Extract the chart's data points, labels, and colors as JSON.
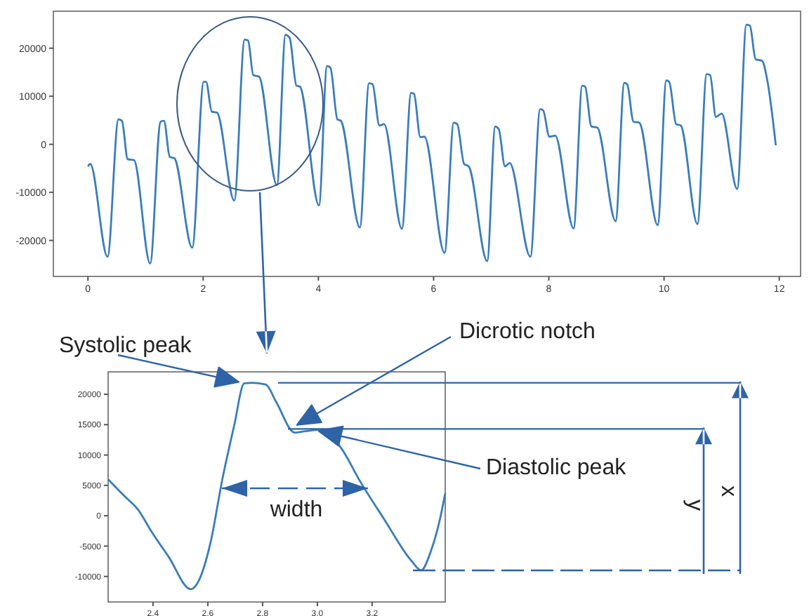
{
  "chart_data": [
    {
      "type": "line",
      "xlim": [
        -0.6,
        12.37
      ],
      "ylim": [
        -27500,
        27700
      ],
      "xticks": [
        0,
        2,
        4,
        6,
        8,
        10,
        12
      ],
      "yticks": [
        -20000,
        -10000,
        0,
        10000,
        20000
      ],
      "grid": false,
      "marker": "none",
      "line_style": "solid",
      "series": [
        {
          "color": "#3a7dbb",
          "x": [
            0,
            0.04,
            0.34,
            0.53,
            0.59,
            0.69,
            0.8,
            1.08,
            1.26,
            1.32,
            1.42,
            1.5,
            1.81,
            2.01,
            2.05,
            2.15,
            2.24,
            2.54,
            2.72,
            2.78,
            2.87,
            2.97,
            3.28,
            3.43,
            3.5,
            3.62,
            3.68,
            4.01,
            4.15,
            4.21,
            4.33,
            4.39,
            4.72,
            4.88,
            4.94,
            5.06,
            5.14,
            5.45,
            5.61,
            5.66,
            5.77,
            5.84,
            6.19,
            6.35,
            6.41,
            6.53,
            6.61,
            6.93,
            7.07,
            7.13,
            7.24,
            7.32,
            7.68,
            7.85,
            7.9,
            8.01,
            8.11,
            8.43,
            8.58,
            8.63,
            8.74,
            8.84,
            9.16,
            9.31,
            9.36,
            9.47,
            9.57,
            9.89,
            10.04,
            10.09,
            10.21,
            10.29,
            10.58,
            10.74,
            10.8,
            10.9,
            11.0,
            11.27,
            11.43,
            11.49,
            11.59,
            11.7,
            11.79,
            11.94
          ],
          "values": [
            -4600,
            -4100,
            -23400,
            5200,
            4900,
            -3100,
            -3300,
            -24800,
            4700,
            4900,
            -2600,
            -2900,
            -21500,
            13000,
            13000,
            6800,
            6600,
            -11700,
            21800,
            21600,
            14400,
            14100,
            -8500,
            22800,
            22200,
            12200,
            12000,
            -12700,
            16300,
            15900,
            5200,
            4900,
            -17300,
            12700,
            12500,
            3900,
            4200,
            -17600,
            10700,
            10500,
            1500,
            1600,
            -22600,
            4500,
            4200,
            -4100,
            -4600,
            -24300,
            3700,
            3200,
            -4600,
            -3900,
            -23400,
            7300,
            7100,
            1600,
            1800,
            -17500,
            12200,
            12000,
            3700,
            3500,
            -16000,
            12800,
            12500,
            4700,
            4500,
            -16800,
            13300,
            13000,
            4200,
            3900,
            -16600,
            14600,
            14400,
            5700,
            6400,
            -9300,
            24900,
            24700,
            17700,
            17400,
            13500,
            -200
          ]
        }
      ]
    },
    {
      "type": "line",
      "xlim": [
        2.236,
        3.467
      ],
      "ylim": [
        -14200,
        23700
      ],
      "xticks": [
        2.4,
        2.6,
        2.8,
        {
          "value": 3,
          "label": "3.0"
        },
        3.2
      ],
      "yticks": [
        -10000,
        -5000,
        0,
        5000,
        10000,
        15000,
        20000
      ],
      "grid": false,
      "marker": "none",
      "line_style": "solid",
      "series": [
        {
          "color": "#3a7dbb",
          "x": [
            2.236,
            2.294,
            2.345,
            2.397,
            2.456,
            2.538,
            2.568,
            2.61,
            2.653,
            2.696,
            2.733,
            2.764,
            2.812,
            2.85,
            2.918,
            2.952,
            3.021,
            3.089,
            3.157,
            3.243,
            3.345,
            3.379,
            3.414,
            3.448,
            3.467
          ],
          "values": [
            6000,
            3300,
            1000,
            -2800,
            -6700,
            -12100,
            -10600,
            -4400,
            6000,
            14800,
            21800,
            21900,
            21600,
            18700,
            13700,
            13900,
            14200,
            11000,
            5600,
            -500,
            -7500,
            -9000,
            -5900,
            -500,
            3700
          ]
        }
      ],
      "ref_lines": [
        {
          "axis": "y",
          "value": 21900
        },
        {
          "axis": "y",
          "value": 14300
        },
        {
          "axis": "y",
          "value": -9000,
          "line_style": "dashed"
        }
      ],
      "annotations": [
        {
          "text": "Systolic peak",
          "x": 2.733,
          "y": 21800
        },
        {
          "text": "Dicrotic notch",
          "x": 2.9,
          "y": 13800
        },
        {
          "text": "Diastolic peak",
          "x": 3.0,
          "y": 14200
        },
        "width",
        "y",
        "x"
      ]
    }
  ]
}
